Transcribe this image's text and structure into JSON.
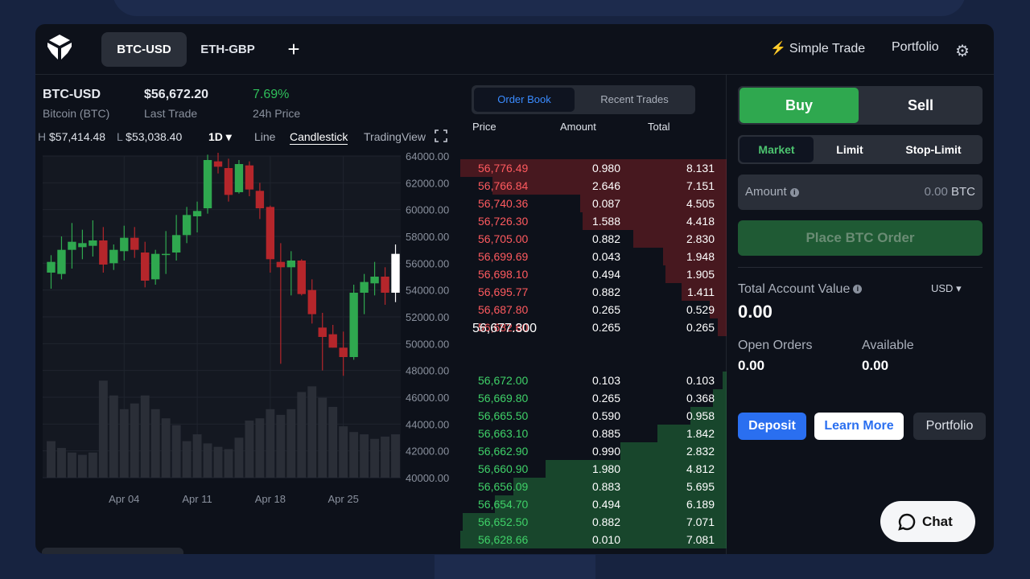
{
  "tabs": [
    {
      "label": "BTC-USD",
      "active": true
    },
    {
      "label": "ETH-GBP",
      "active": false
    }
  ],
  "add_tab_icon": "plus-icon",
  "header_links": {
    "simple_trade": "Simple Trade",
    "portfolio": "Portfolio"
  },
  "ticker": {
    "pair": "BTC-USD",
    "name": "Bitcoin (BTC)",
    "last_trade": "$56,672.20",
    "last_trade_label": "Last Trade",
    "change": "7.69%",
    "change_label": "24h Price",
    "high_key": "H",
    "high": "$57,414.48",
    "low_key": "L",
    "low": "$53,038.40"
  },
  "chart_controls": {
    "interval": "1D",
    "line": "Line",
    "candlestick": "Candlestick",
    "tradingview": "TradingView"
  },
  "chart_data": {
    "type": "candlestick",
    "price_axis": [
      "64000.00",
      "62000.00",
      "60000.00",
      "58000.00",
      "56000.00",
      "54000.00",
      "52000.00",
      "50000.00",
      "48000.00",
      "46000.00",
      "44000.00",
      "42000.00",
      "40000.00"
    ],
    "ylim": [
      40000,
      64000
    ],
    "x_labels": [
      "Apr 04",
      "Apr 11",
      "Apr 18",
      "Apr 25"
    ],
    "candles": [
      {
        "o": 55300,
        "h": 56600,
        "l": 54100,
        "c": 56100
      },
      {
        "o": 55200,
        "h": 58000,
        "l": 54800,
        "c": 57000
      },
      {
        "o": 57000,
        "h": 59000,
        "l": 55600,
        "c": 57600
      },
      {
        "o": 57200,
        "h": 58500,
        "l": 56300,
        "c": 57500
      },
      {
        "o": 57300,
        "h": 59200,
        "l": 56500,
        "c": 57700
      },
      {
        "o": 57700,
        "h": 58700,
        "l": 55300,
        "c": 55900
      },
      {
        "o": 56000,
        "h": 57400,
        "l": 55500,
        "c": 57000
      },
      {
        "o": 56900,
        "h": 58800,
        "l": 56200,
        "c": 57900
      },
      {
        "o": 57900,
        "h": 58700,
        "l": 56400,
        "c": 57000
      },
      {
        "o": 56800,
        "h": 57600,
        "l": 54200,
        "c": 54700
      },
      {
        "o": 54800,
        "h": 57000,
        "l": 54400,
        "c": 56700
      },
      {
        "o": 56700,
        "h": 58400,
        "l": 55200,
        "c": 56700
      },
      {
        "o": 56800,
        "h": 59600,
        "l": 56200,
        "c": 58100
      },
      {
        "o": 58100,
        "h": 60200,
        "l": 57500,
        "c": 59600
      },
      {
        "o": 59500,
        "h": 60600,
        "l": 58300,
        "c": 59900
      },
      {
        "o": 60100,
        "h": 64100,
        "l": 59700,
        "c": 63700
      },
      {
        "o": 63600,
        "h": 64400,
        "l": 62700,
        "c": 63200
      },
      {
        "o": 63100,
        "h": 63800,
        "l": 60600,
        "c": 61100
      },
      {
        "o": 61300,
        "h": 63700,
        "l": 61200,
        "c": 63400
      },
      {
        "o": 63300,
        "h": 63600,
        "l": 61000,
        "c": 61500
      },
      {
        "o": 61400,
        "h": 62000,
        "l": 59300,
        "c": 60100
      },
      {
        "o": 60200,
        "h": 60300,
        "l": 55300,
        "c": 56300
      },
      {
        "o": 56100,
        "h": 57500,
        "l": 48500,
        "c": 55700
      },
      {
        "o": 55700,
        "h": 56900,
        "l": 53600,
        "c": 56200
      },
      {
        "o": 56200,
        "h": 56300,
        "l": 53600,
        "c": 53700
      },
      {
        "o": 54000,
        "h": 54800,
        "l": 51500,
        "c": 52200
      },
      {
        "o": 51200,
        "h": 52300,
        "l": 48000,
        "c": 50500
      },
      {
        "o": 50700,
        "h": 51400,
        "l": 49700,
        "c": 49700
      },
      {
        "o": 49700,
        "h": 50900,
        "l": 47600,
        "c": 49000
      },
      {
        "o": 49000,
        "h": 54400,
        "l": 48800,
        "c": 53800
      },
      {
        "o": 53800,
        "h": 55200,
        "l": 52200,
        "c": 54600
      },
      {
        "o": 54500,
        "h": 56100,
        "l": 53600,
        "c": 55000
      },
      {
        "o": 55000,
        "h": 55700,
        "l": 52900,
        "c": 53800
      },
      {
        "o": 53800,
        "h": 57400,
        "l": 53100,
        "c": 56700
      }
    ],
    "volumes": [
      0.32,
      0.26,
      0.22,
      0.2,
      0.22,
      0.85,
      0.72,
      0.6,
      0.65,
      0.72,
      0.6,
      0.52,
      0.46,
      0.32,
      0.38,
      0.3,
      0.27,
      0.25,
      0.35,
      0.5,
      0.52,
      0.6,
      0.55,
      0.6,
      0.75,
      0.8,
      0.7,
      0.62,
      0.45,
      0.4,
      0.38,
      0.34,
      0.36,
      0.38
    ]
  },
  "orderbook": {
    "tabs": {
      "orderbook": "Order Book",
      "recent": "Recent Trades"
    },
    "headers": {
      "price": "Price",
      "amount": "Amount",
      "total": "Total"
    },
    "asks": [
      {
        "price": "56,776.49",
        "amount": "0.980",
        "total": "8.131",
        "depth": 1.0
      },
      {
        "price": "56,766.84",
        "amount": "2.646",
        "total": "7.151",
        "depth": 0.88
      },
      {
        "price": "56,740.36",
        "amount": "0.087",
        "total": "4.505",
        "depth": 0.55
      },
      {
        "price": "56,726.30",
        "amount": "1.588",
        "total": "4.418",
        "depth": 0.54
      },
      {
        "price": "56,705.00",
        "amount": "0.882",
        "total": "2.830",
        "depth": 0.35
      },
      {
        "price": "56,699.69",
        "amount": "0.043",
        "total": "1.948",
        "depth": 0.24
      },
      {
        "price": "56,698.10",
        "amount": "0.494",
        "total": "1.905",
        "depth": 0.23
      },
      {
        "price": "56,695.77",
        "amount": "0.882",
        "total": "1.411",
        "depth": 0.17
      },
      {
        "price": "56,687.80",
        "amount": "0.265",
        "total": "0.529",
        "depth": 0.065
      },
      {
        "price": "56,682.60",
        "amount": "0.265",
        "total": "0.265",
        "depth": 0.033
      }
    ],
    "mid": "56,677.300",
    "bids": [
      {
        "price": "56,672.00",
        "amount": "0.103",
        "total": "0.103",
        "depth": 0.015
      },
      {
        "price": "56,669.80",
        "amount": "0.265",
        "total": "0.368",
        "depth": 0.052
      },
      {
        "price": "56,665.50",
        "amount": "0.590",
        "total": "0.958",
        "depth": 0.135
      },
      {
        "price": "56,663.10",
        "amount": "0.885",
        "total": "1.842",
        "depth": 0.26
      },
      {
        "price": "56,662.90",
        "amount": "0.990",
        "total": "2.832",
        "depth": 0.4
      },
      {
        "price": "56,660.90",
        "amount": "1.980",
        "total": "4.812",
        "depth": 0.68
      },
      {
        "price": "56,656.09",
        "amount": "0.883",
        "total": "5.695",
        "depth": 0.8
      },
      {
        "price": "56,654.70",
        "amount": "0.494",
        "total": "6.189",
        "depth": 0.87
      },
      {
        "price": "56,652.50",
        "amount": "0.882",
        "total": "7.071",
        "depth": 0.99
      },
      {
        "price": "56,628.66",
        "amount": "0.010",
        "total": "7.081",
        "depth": 1.0
      }
    ]
  },
  "trade": {
    "buy": "Buy",
    "sell": "Sell",
    "order_types": [
      "Market",
      "Limit",
      "Stop-Limit"
    ],
    "amount_label": "Amount",
    "amount_value": "0.00",
    "amount_unit": "BTC",
    "place_order": "Place BTC Order",
    "account_value_label": "Total Account Value",
    "account_value": "0.00",
    "currency": "USD",
    "open_orders_label": "Open Orders",
    "open_orders": "0.00",
    "available_label": "Available",
    "available": "0.00",
    "deposit": "Deposit",
    "learn_more": "Learn More",
    "portfolio": "Portfolio"
  },
  "chat": {
    "label": "Chat"
  },
  "colors": {
    "up": "#2fa84f",
    "down": "#b5262b",
    "accent": "#3a8bff"
  }
}
